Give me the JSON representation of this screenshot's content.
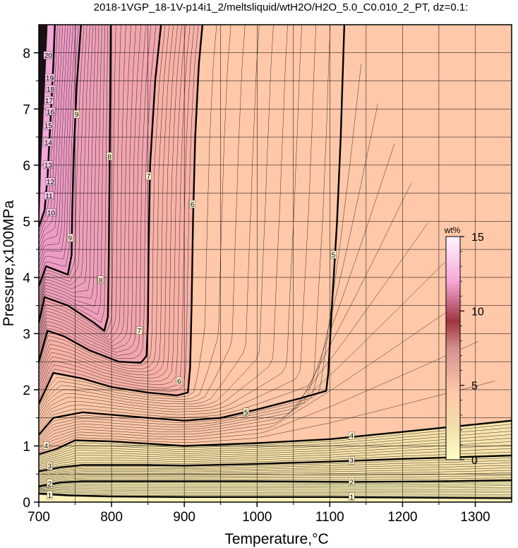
{
  "chart_data": {
    "type": "heatmap",
    "title": "2018-1VGP_18-1V-p14i1_2/meltsliquid/wtH2O/H2O_5.0_C0.010_2_PT, dz=0.1:",
    "xlabel": "Temperature,°C",
    "ylabel": "Pressure,x100MPa",
    "xlim": [
      700,
      1350
    ],
    "ylim": [
      0,
      8.5
    ],
    "xticks": [
      "700",
      "800",
      "900",
      "1000",
      "1100",
      "1200",
      "1300"
    ],
    "yticks": [
      "0",
      "1",
      "2",
      "3",
      "4",
      "5",
      "6",
      "7",
      "8"
    ],
    "grid": true,
    "colorbar": {
      "unit": "wt%",
      "range": [
        0,
        15
      ],
      "ticks": [
        "0",
        "5",
        "10",
        "15"
      ],
      "placement": "right-inside"
    },
    "contours": [
      {
        "level": "1",
        "points": [
          [
            700,
            0.15
          ],
          [
            740,
            0.12
          ],
          [
            800,
            0.1
          ],
          [
            900,
            0.09
          ],
          [
            1000,
            0.09
          ],
          [
            1100,
            0.09
          ],
          [
            1200,
            0.08
          ],
          [
            1350,
            0.07
          ]
        ]
      },
      {
        "level": "2",
        "points": [
          [
            700,
            0.28
          ],
          [
            730,
            0.35
          ],
          [
            760,
            0.37
          ],
          [
            850,
            0.37
          ],
          [
            1000,
            0.37
          ],
          [
            1130,
            0.36
          ],
          [
            1250,
            0.37
          ],
          [
            1350,
            0.39
          ]
        ]
      },
      {
        "level": "3",
        "points": [
          [
            700,
            0.55
          ],
          [
            730,
            0.62
          ],
          [
            760,
            0.66
          ],
          [
            850,
            0.66
          ],
          [
            900,
            0.65
          ],
          [
            1000,
            0.68
          ],
          [
            1100,
            0.72
          ],
          [
            1200,
            0.77
          ],
          [
            1350,
            0.83
          ]
        ]
      },
      {
        "level": "4",
        "points": [
          [
            700,
            0.85
          ],
          [
            725,
            0.95
          ],
          [
            750,
            1.1
          ],
          [
            800,
            1.08
          ],
          [
            900,
            1.0
          ],
          [
            1000,
            1.05
          ],
          [
            1100,
            1.12
          ],
          [
            1200,
            1.25
          ],
          [
            1350,
            1.45
          ]
        ]
      },
      {
        "level": "5",
        "points": [
          [
            700,
            1.2
          ],
          [
            720,
            1.5
          ],
          [
            760,
            1.6
          ],
          [
            850,
            1.5
          ],
          [
            900,
            1.45
          ],
          [
            950,
            1.5
          ],
          [
            1000,
            1.65
          ],
          [
            1060,
            1.85
          ],
          [
            1095,
            1.98
          ],
          [
            1098,
            2.3
          ],
          [
            1103,
            3.5
          ],
          [
            1110,
            5.0
          ],
          [
            1115,
            6.5
          ],
          [
            1120,
            8.5
          ]
        ]
      },
      {
        "level": "6",
        "points": [
          [
            700,
            1.75
          ],
          [
            720,
            2.3
          ],
          [
            760,
            2.2
          ],
          [
            800,
            2.05
          ],
          [
            850,
            1.95
          ],
          [
            890,
            1.9
          ],
          [
            905,
            1.95
          ],
          [
            908,
            2.4
          ],
          [
            910,
            3.5
          ],
          [
            912,
            5.0
          ],
          [
            915,
            6.5
          ],
          [
            920,
            7.8
          ],
          [
            925,
            8.5
          ]
        ]
      },
      {
        "level": "7",
        "points": [
          [
            700,
            2.5
          ],
          [
            712,
            3.05
          ],
          [
            735,
            2.95
          ],
          [
            770,
            2.7
          ],
          [
            810,
            2.5
          ],
          [
            840,
            2.48
          ],
          [
            848,
            2.6
          ],
          [
            850,
            3.2
          ],
          [
            851,
            4.5
          ],
          [
            853,
            6.0
          ],
          [
            860,
            7.5
          ],
          [
            868,
            8.5
          ]
        ]
      },
      {
        "level": "8",
        "points": [
          [
            700,
            3.2
          ],
          [
            708,
            3.65
          ],
          [
            740,
            3.5
          ],
          [
            775,
            3.2
          ],
          [
            790,
            3.05
          ],
          [
            795,
            3.3
          ],
          [
            796,
            4.2
          ],
          [
            797,
            5.5
          ],
          [
            798,
            7.0
          ],
          [
            799,
            8.5
          ]
        ]
      },
      {
        "level": "9",
        "points": [
          [
            700,
            3.85
          ],
          [
            710,
            4.2
          ],
          [
            740,
            4.05
          ],
          [
            745,
            4.4
          ],
          [
            746,
            5.2
          ],
          [
            748,
            6.2
          ],
          [
            752,
            7.4
          ],
          [
            758,
            8.5
          ]
        ]
      },
      {
        "level": "10",
        "points": [
          [
            700,
            4.9
          ],
          [
            708,
            5.2
          ],
          [
            712,
            5.8
          ],
          [
            716,
            6.8
          ],
          [
            720,
            7.8
          ],
          [
            722,
            8.5
          ]
        ]
      }
    ],
    "contour_labels": [
      {
        "text": "1",
        "x": 715,
        "y": 0.12
      },
      {
        "text": "1",
        "x": 1130,
        "y": 0.09
      },
      {
        "text": "2",
        "x": 715,
        "y": 0.33
      },
      {
        "text": "2",
        "x": 1130,
        "y": 0.36
      },
      {
        "text": "3",
        "x": 715,
        "y": 0.64
      },
      {
        "text": "3",
        "x": 1130,
        "y": 0.74
      },
      {
        "text": "4",
        "x": 710,
        "y": 1.0
      },
      {
        "text": "4",
        "x": 1130,
        "y": 1.18
      },
      {
        "text": "5",
        "x": 985,
        "y": 1.6
      },
      {
        "text": "5",
        "x": 1105,
        "y": 4.4
      },
      {
        "text": "6",
        "x": 893,
        "y": 2.15
      },
      {
        "text": "6",
        "x": 911,
        "y": 5.3
      },
      {
        "text": "7",
        "x": 838,
        "y": 3.05
      },
      {
        "text": "7",
        "x": 851,
        "y": 5.8
      },
      {
        "text": "8",
        "x": 785,
        "y": 3.95
      },
      {
        "text": "8",
        "x": 797,
        "y": 6.15
      },
      {
        "text": "9",
        "x": 743,
        "y": 4.7
      },
      {
        "text": "9",
        "x": 752,
        "y": 6.9
      },
      {
        "text": "10",
        "x": 717,
        "y": 5.15
      },
      {
        "text": "11",
        "x": 714,
        "y": 5.45
      },
      {
        "text": "12",
        "x": 716,
        "y": 5.7
      },
      {
        "text": "13",
        "x": 713,
        "y": 6.0
      },
      {
        "text": "14",
        "x": 713,
        "y": 6.4
      },
      {
        "text": "15",
        "x": 713,
        "y": 6.7
      },
      {
        "text": "16",
        "x": 716,
        "y": 6.95
      },
      {
        "text": "17",
        "x": 714,
        "y": 7.15
      },
      {
        "text": "18",
        "x": 716,
        "y": 7.35
      },
      {
        "text": "19",
        "x": 715,
        "y": 7.55
      },
      {
        "text": "20",
        "x": 713,
        "y": 7.95
      }
    ]
  }
}
